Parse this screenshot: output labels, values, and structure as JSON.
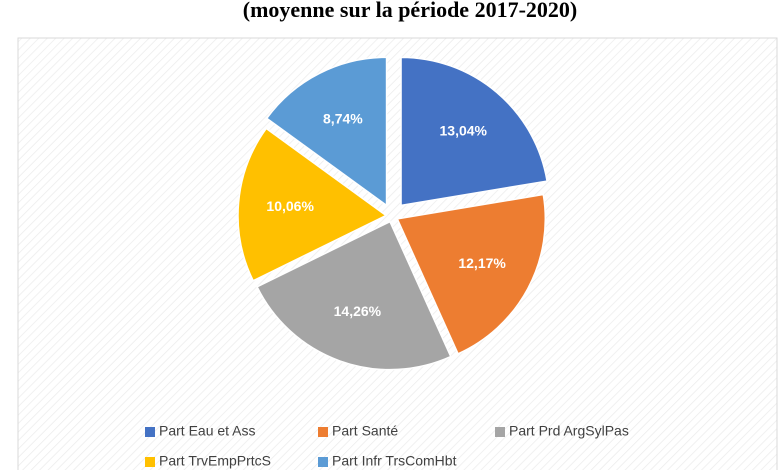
{
  "chart_data": {
    "type": "pie",
    "title": "(moyenne sur la période 2017-2020)",
    "categories": [
      "Part Eau et Ass",
      "Part Santé",
      "Part Prd ArgSylPas",
      "Part TrvEmpPrtcS",
      "Part Infr TrsComHbt"
    ],
    "values": [
      13.04,
      12.17,
      14.26,
      10.06,
      8.74
    ],
    "value_labels": [
      "13,04%",
      "12,17%",
      "14,26%",
      "10,06%",
      "8,74%"
    ],
    "colors": [
      "#4472c4",
      "#ed7d31",
      "#a5a5a5",
      "#ffc000",
      "#5b9bd5"
    ]
  }
}
